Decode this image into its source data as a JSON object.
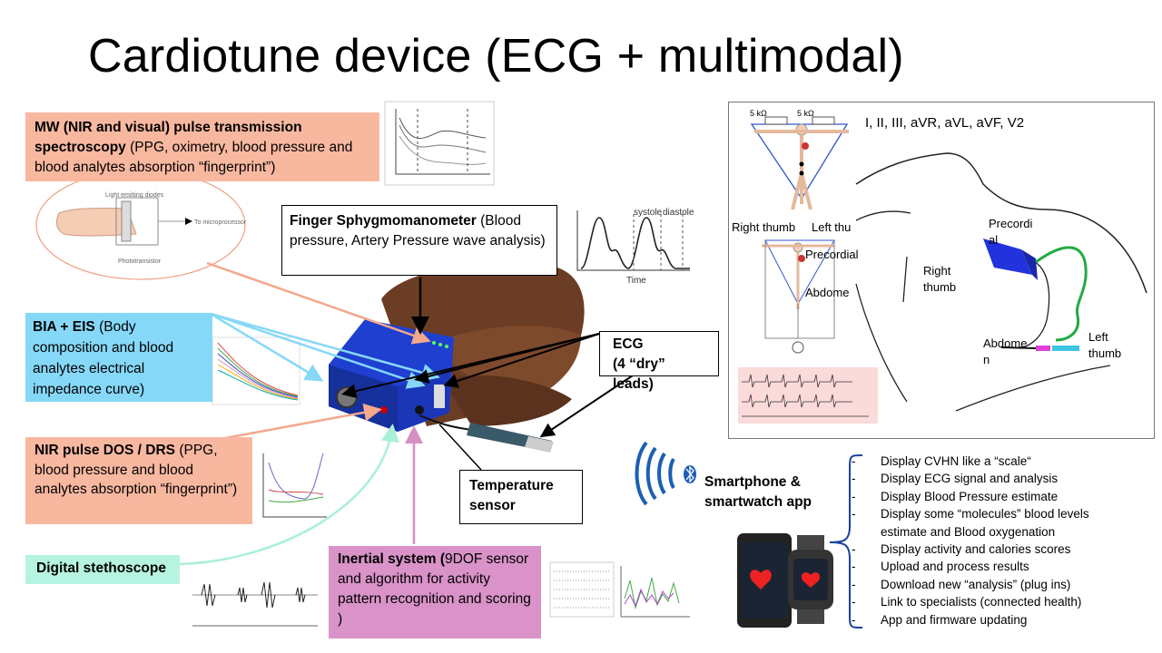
{
  "title": "Cardiotune device (ECG + multimodal)",
  "boxes": {
    "mw": {
      "bold": "MW (NIR and visual) pulse transmission spectroscopy",
      "rest": " (PPG, oximetry, blood pressure and blood analytes absorption “fingerprint”)"
    },
    "finger": {
      "bold": "Finger Sphygmomanometer",
      "rest": " (Blood pressure, Artery Pressure wave analysis)"
    },
    "bia": {
      "bold": "BIA + EIS",
      "rest": " (Body composition and blood analytes electrical impedance  curve)"
    },
    "ecg": {
      "line1": "ECG",
      "line2": "(4 “dry” leads)"
    },
    "nir": {
      "bold": "NIR pulse DOS / DRS",
      "rest": " (PPG, blood pressure and blood analytes absorption “fingerprint”)"
    },
    "temp": {
      "text": "Temperature sensor"
    },
    "steth": {
      "text": "Digital stethoscope"
    },
    "inertial": {
      "bold": "Inertial system (",
      "rest": "9DOF sensor and algorithm for activity pattern recognition and scoring )"
    }
  },
  "diagram_labels": {
    "light_emitting": "Light emitting diodes",
    "to_micro": "To microprocessor",
    "phototransistor": "Phototransistor",
    "systole": "systole",
    "diastole": "diastole",
    "time": "Time",
    "resistor": "5 kΩ"
  },
  "ecg_panel": {
    "leads": "I, II, III, aVR, aVL, aVF, V2",
    "right_thumb_left": "Right thumb",
    "left_thumb_cut": "Left thu",
    "precordial_small": "Precordial",
    "abdomen_small": "Abdome",
    "right_thumb_body_1": "Right",
    "right_thumb_body_2": "thumb",
    "precordial_body_1": "Precordi",
    "precordial_body_2": "al",
    "abdomen_body_1": "Abdome",
    "abdomen_body_2": "n",
    "left_thumb_1": "Left",
    "left_thumb_2": "thumb"
  },
  "app": {
    "title_line1": "Smartphone &",
    "title_line2": "smartwatch app",
    "features": [
      "Display CVHN like a “scale“",
      "Display ECG signal and analysis",
      "Display Blood Pressure estimate",
      "Display some “molecules” blood levels",
      "estimate and Blood oxygenation",
      "Display activity and calories scores",
      "Upload and process results",
      "Download new “analysis” (plug ins)",
      "Link to specialists (connected health)",
      "App and firmware updating"
    ]
  },
  "colors": {
    "salmon": "#f8b8a0",
    "sky": "#86d8f8",
    "mint": "#b6f3e1",
    "pink": "#d993c8",
    "device_blue": "#1f3fd0",
    "bluetooth_blue": "#1a5fb4"
  }
}
